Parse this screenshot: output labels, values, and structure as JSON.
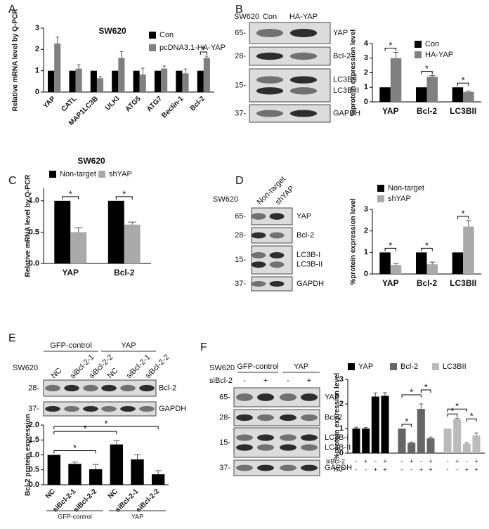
{
  "panels": [
    "A",
    "B",
    "C",
    "D",
    "E",
    "F"
  ],
  "chart_data": [
    {
      "type": "bar",
      "title": "SW620",
      "ylabel": "Relative mRNA level by Q-PCR",
      "categories": [
        "YAP",
        "CATL",
        "MAP1LC3B",
        "ULKI",
        "ATG5",
        "ATG7",
        "Beclin-1",
        "Bcl-2"
      ],
      "series": [
        {
          "name": "Con",
          "color": "#000000",
          "values": [
            1,
            1,
            1,
            1,
            1,
            1,
            1,
            1
          ]
        },
        {
          "name": "pcDNA3.1-HA-YAP",
          "color": "#808080",
          "values": [
            2.28,
            1.1,
            0.65,
            1.6,
            0.82,
            1.1,
            0.88,
            1.6
          ],
          "errors": [
            0.3,
            0.18,
            0.08,
            0.3,
            0.3,
            0.12,
            0.2,
            0.08
          ]
        }
      ],
      "ylim": [
        0,
        3
      ],
      "yticks": [
        0,
        1,
        2,
        3
      ],
      "significance": [
        {
          "text": "*",
          "category": 7
        }
      ]
    },
    {
      "type": "bar",
      "ylabel": "%protein expression level",
      "categories": [
        "YAP",
        "Bcl-2",
        "LC3BII"
      ],
      "series": [
        {
          "name": "Con",
          "color": "#000000",
          "values": [
            1,
            1,
            1
          ]
        },
        {
          "name": "HA-YAP",
          "color": "#808080",
          "values": [
            3.0,
            1.72,
            0.68
          ],
          "errors": [
            0.4,
            0.08,
            0.05
          ]
        }
      ],
      "ylim": [
        0,
        4
      ],
      "yticks": [
        0,
        1,
        2,
        3,
        4
      ],
      "significance": [
        {
          "text": "*",
          "category": 0
        },
        {
          "text": "*",
          "category": 1
        },
        {
          "text": "*",
          "category": 2
        }
      ]
    },
    {
      "type": "bar",
      "title": "SW620",
      "ylabel": "Relative mRNA level by Q-PCR",
      "categories": [
        "YAP",
        "Bcl-2"
      ],
      "series": [
        {
          "name": "Non-target",
          "color": "#000000",
          "values": [
            1,
            1
          ]
        },
        {
          "name": "shYAP",
          "color": "#aaaaaa",
          "values": [
            0.5,
            0.62
          ],
          "errors": [
            0.07,
            0.04
          ]
        }
      ],
      "ylim": [
        0,
        1.2
      ],
      "yticks": [
        {
          "value": 0,
          "label": "0.0"
        },
        0.5,
        {
          "value": 1,
          "label": "1.0"
        }
      ],
      "significance": [
        {
          "text": "*",
          "category": 0
        },
        {
          "text": "*",
          "category": 1
        }
      ]
    },
    {
      "type": "bar",
      "ylabel": "%protein expression level",
      "categories": [
        "YAP",
        "Bcl-2",
        "LC3BII"
      ],
      "series": [
        {
          "name": "Non-target",
          "color": "#000000",
          "values": [
            1,
            1,
            1
          ]
        },
        {
          "name": "shYAP",
          "color": "#aaaaaa",
          "values": [
            0.42,
            0.45,
            2.2
          ],
          "errors": [
            0.06,
            0.1,
            0.28
          ]
        }
      ],
      "ylim": [
        0,
        3
      ],
      "yticks": [
        0,
        1,
        2,
        3
      ],
      "significance": [
        {
          "text": "*",
          "category": 0
        },
        {
          "text": "*",
          "category": 1
        },
        {
          "text": "*",
          "category": 2
        }
      ]
    },
    {
      "type": "bar",
      "ylabel": "Bcl-2 protein expression",
      "categories": [
        "NC",
        "siBcl-2-1",
        "siBcl-2-2",
        "NC",
        "siBcl-2-1",
        "siBcl-2-2"
      ],
      "values": [
        1.0,
        0.7,
        0.52,
        1.35,
        0.85,
        0.35
      ],
      "errors": [
        null,
        0.06,
        0.16,
        0.13,
        0.16,
        0.12
      ],
      "color": "#000000",
      "groups": [
        {
          "label": "GFP-control",
          "size": 3
        },
        {
          "label": "YAP",
          "size": 3
        }
      ],
      "ylim": [
        0,
        2
      ],
      "yticks": [
        {
          "value": 0,
          "label": "0.0"
        },
        0.5,
        {
          "value": 1,
          "label": "1.0"
        },
        1.5,
        {
          "value": 2,
          "label": "2.0"
        }
      ],
      "significance": [
        {
          "text": "*",
          "from": 0,
          "to": 2
        },
        {
          "text": "*",
          "from": 0,
          "to": 3
        },
        {
          "text": "*",
          "from": 0,
          "to": 5
        }
      ]
    },
    {
      "type": "bar",
      "ylabel": "%protein expression level",
      "series": [
        {
          "name": "YAP",
          "color": "#000000",
          "values": [
            1,
            1,
            2.3,
            2.33
          ],
          "errors": [
            0.05,
            0.04,
            0.15,
            0.13
          ]
        },
        {
          "name": "Bcl-2",
          "color": "#666666",
          "values": [
            1,
            0.42,
            1.8,
            0.6
          ],
          "errors": [
            null,
            0.03,
            0.2,
            0.05
          ]
        },
        {
          "name": "LC3BII",
          "color": "#bbbbbb",
          "values": [
            1,
            1.38,
            0.38,
            0.72
          ],
          "errors": [
            null,
            0.04,
            0.04,
            0.1
          ]
        }
      ],
      "conditions": [
        {
          "label": "siBcl-2",
          "signs": [
            "-",
            "+",
            "-",
            "+"
          ]
        },
        {
          "label": "YAP",
          "signs": [
            "-",
            "-",
            "+",
            "+"
          ]
        }
      ],
      "ylim": [
        0,
        3
      ],
      "yticks": [
        0,
        1,
        2,
        3
      ],
      "significance": [
        {
          "text": "*",
          "series": 1,
          "from": 0,
          "to": 1
        },
        {
          "text": "*",
          "series": 1,
          "from": 0,
          "to": 2
        },
        {
          "text": "*",
          "series": 1,
          "from": 2,
          "to": 3
        },
        {
          "text": "*",
          "series": 2,
          "from": 0,
          "to": 1
        },
        {
          "text": "*",
          "series": 2,
          "from": 0,
          "to": 2
        },
        {
          "text": "*",
          "series": 2,
          "from": 2,
          "to": 3
        }
      ]
    }
  ],
  "blots": [
    {
      "cell_line": "SW620",
      "lanes": [
        "Con",
        "HA-YAP"
      ],
      "markers": [
        "65-",
        "28-",
        "15-",
        "37-"
      ],
      "proteins": [
        "YAP",
        "Bcl-2",
        "LC3B-I",
        "LC3B-II",
        "GAPDH"
      ]
    },
    {
      "cell_line": "SW620",
      "lanes": [
        "Non-target",
        "shYAP"
      ],
      "markers": [
        "65-",
        "28-",
        "15-",
        "37-"
      ],
      "proteins": [
        "YAP",
        "Bcl-2",
        "LC3B-I",
        "LC3B-II",
        "GAPDH"
      ]
    },
    {
      "cell_line": "SW620",
      "groups": [
        "GFP-control",
        "YAP"
      ],
      "lanes": [
        "NC",
        "siBcl-2-1",
        "siBcl-2-2",
        "NC",
        "siBcl-2-1",
        "siBcl-2-2"
      ],
      "markers": [
        "28-",
        "37-"
      ],
      "proteins": [
        "Bcl-2",
        "GAPDH"
      ]
    },
    {
      "cell_line": "SW620",
      "groups": [
        "GFP-control",
        "YAP"
      ],
      "treatment": "siBcl-2",
      "signs": [
        "-",
        "+",
        "-",
        "+"
      ],
      "markers": [
        "65-",
        "28-",
        "15-",
        "37-"
      ],
      "proteins": [
        "YAP",
        "Bcl-2",
        "LC3B-I",
        "LC3B-II",
        "GAPDH"
      ]
    }
  ]
}
